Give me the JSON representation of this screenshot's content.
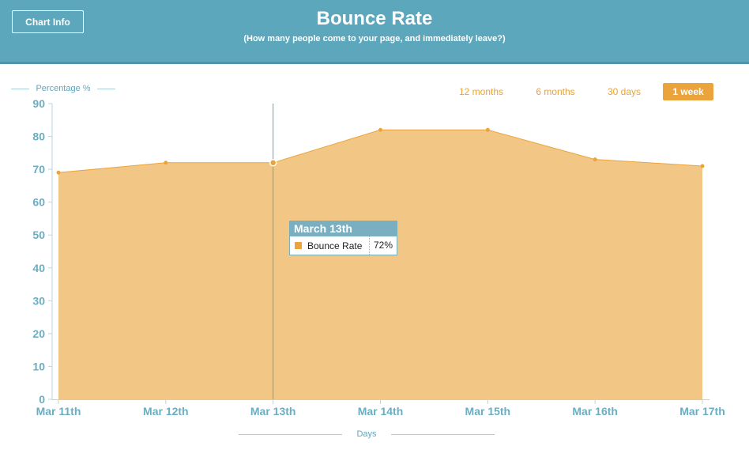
{
  "header": {
    "info_button": "Chart Info",
    "title": "Bounce Rate",
    "subtitle": "(How many people come to your page, and immediately leave?)"
  },
  "range_buttons": [
    {
      "label": "12 months",
      "active": false
    },
    {
      "label": "6 months",
      "active": false
    },
    {
      "label": "30 days",
      "active": false
    },
    {
      "label": "1 week",
      "active": true
    }
  ],
  "tooltip": {
    "title": "March 13th",
    "series": "Bounce Rate",
    "value": "72%"
  },
  "colors": {
    "header": "#5da7bc",
    "accent": "#eba43b",
    "area_fill": "#f2c785",
    "axis_text": "#6aaec2"
  },
  "chart_data": {
    "type": "area",
    "categories": [
      "Mar 11th",
      "Mar 12th",
      "Mar 13th",
      "Mar 14th",
      "Mar 15th",
      "Mar 16th",
      "Mar 17th"
    ],
    "series": [
      {
        "name": "Bounce Rate",
        "values": [
          69,
          72,
          72,
          82,
          82,
          73,
          71
        ]
      }
    ],
    "xlabel": "Days",
    "ylabel": "Percentage %",
    "ylim": [
      0,
      90
    ],
    "yticks": [
      0,
      10,
      20,
      30,
      40,
      50,
      60,
      70,
      80,
      90
    ],
    "highlighted_category": "Mar 13th",
    "grid": false,
    "legend": "none"
  }
}
